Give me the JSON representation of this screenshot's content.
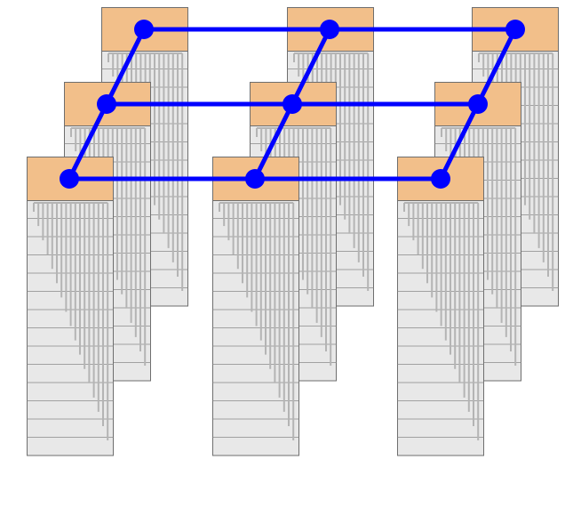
{
  "diagram": {
    "description_visible_text": "",
    "grid": {
      "columns": 3,
      "layers": 3
    },
    "node_tree": {
      "rows_per_card": 14
    },
    "colors": {
      "card_body": "#e8e8e8",
      "card_border": "#6e6e6e",
      "card_header": "#f2bf8a",
      "row_line": "#8a8a8a",
      "tree_line": "#b4b4b4",
      "connector": "#0000ff",
      "background": "#ffffff"
    }
  }
}
